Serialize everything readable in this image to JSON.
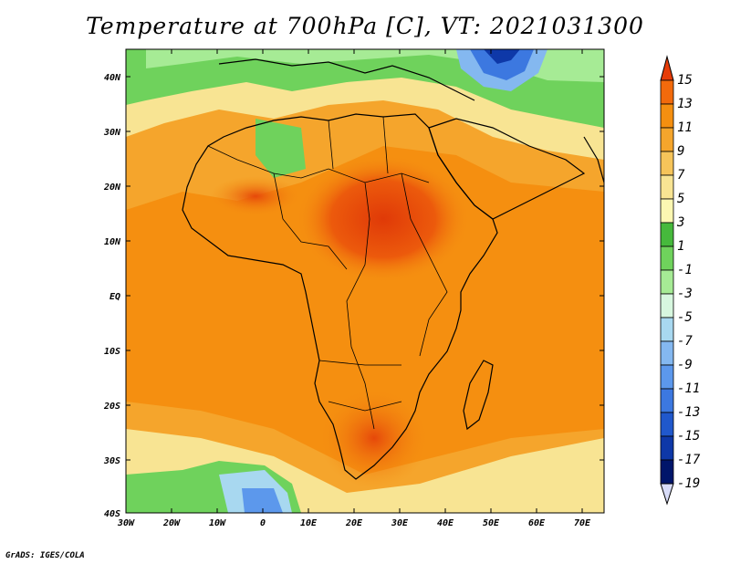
{
  "title": "Temperature at 700hPa [C], VT: 2021031300",
  "credit": "GrADS: IGES/COLA",
  "map": {
    "lon_range": [
      -30,
      75
    ],
    "lat_range": [
      -40,
      45
    ],
    "lat_ticks": [
      "40N",
      "30N",
      "20N",
      "10N",
      "EQ",
      "10S",
      "20S",
      "30S",
      "40S"
    ],
    "lon_ticks": [
      "30W",
      "20W",
      "10W",
      "0",
      "10E",
      "20E",
      "30E",
      "40E",
      "50E",
      "60E",
      "70E"
    ],
    "land_outline_color": "#000000"
  },
  "colorbar": {
    "levels": [
      "15",
      "13",
      "11",
      "9",
      "7",
      "5",
      "3",
      "1",
      "-1",
      "-3",
      "-5",
      "-7",
      "-9",
      "-11",
      "-13",
      "-15",
      "-17",
      "-19"
    ],
    "colors": [
      "#e63c08",
      "#f26a0c",
      "#f58f10",
      "#f5a52c",
      "#f6c45a",
      "#f8e493",
      "#fcf7b2",
      "#46b93c",
      "#6fd25c",
      "#a6eb95",
      "#d7f7df",
      "#a8d8f0",
      "#84b8f0",
      "#5c98ec",
      "#3c78e0",
      "#2058cc",
      "#0e38a8",
      "#00156a",
      "#d8dcf8"
    ]
  }
}
